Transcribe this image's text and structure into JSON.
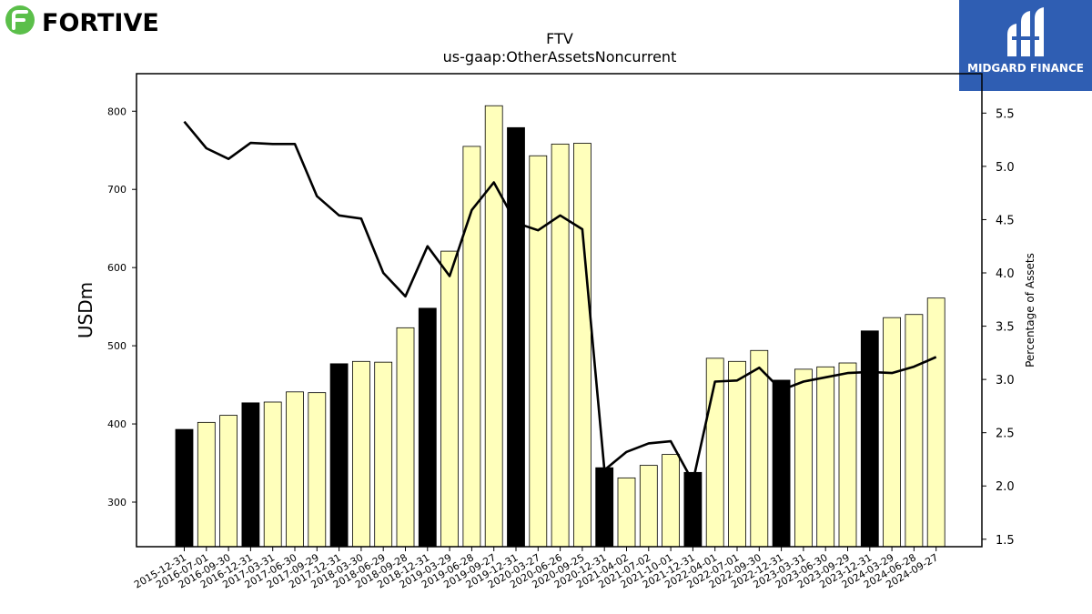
{
  "brand": {
    "name": "FORTIVE",
    "logo_color": "#5bbf4a"
  },
  "badge": {
    "name": "MIDGARD FINANCE",
    "color": "#2f5eb3"
  },
  "chart_data": {
    "type": "bar",
    "title": "FTV",
    "subtitle": "us-gaap:OtherAssetsNoncurrent",
    "ylabel": "USDm",
    "y2label": "Percentage of Assets",
    "ylim": [
      243,
      848
    ],
    "y2lim": [
      1.43,
      5.87
    ],
    "yticks": [
      300,
      400,
      500,
      600,
      700,
      800
    ],
    "y2ticks": [
      "1.5",
      "2.0",
      "2.5",
      "3.0",
      "3.5",
      "4.0",
      "4.5",
      "5.0",
      "5.5"
    ],
    "grid": false,
    "categories": [
      "2015-12-31",
      "2016-07-01",
      "2016-09-30",
      "2016-12-31",
      "2017-03-31",
      "2017-06-30",
      "2017-09-29",
      "2017-12-31",
      "2018-03-30",
      "2018-06-29",
      "2018-09-28",
      "2018-12-31",
      "2019-03-29",
      "2019-06-28",
      "2019-09-27",
      "2019-12-31",
      "2020-03-27",
      "2020-06-26",
      "2020-09-25",
      "2020-12-31",
      "2021-04-02",
      "2021-07-02",
      "2021-10-01",
      "2021-12-31",
      "2022-04-01",
      "2022-07-01",
      "2022-09-30",
      "2022-12-31",
      "2023-03-31",
      "2023-06-30",
      "2023-09-29",
      "2023-12-31",
      "2024-03-29",
      "2024-06-28",
      "2024-09-27"
    ],
    "series": [
      {
        "type": "bar",
        "values": [
          393,
          402,
          411,
          427,
          428,
          441,
          440,
          477,
          480,
          479,
          523,
          548,
          621,
          755,
          807,
          779,
          743,
          758,
          759,
          344,
          331,
          347,
          361,
          338,
          484,
          480,
          494,
          456,
          470,
          473,
          478,
          519,
          536,
          540,
          561
        ],
        "year_end": [
          true,
          false,
          false,
          true,
          false,
          false,
          false,
          true,
          false,
          false,
          false,
          true,
          false,
          false,
          false,
          true,
          false,
          false,
          false,
          true,
          false,
          false,
          false,
          true,
          false,
          false,
          false,
          true,
          false,
          false,
          false,
          true,
          false,
          false,
          false
        ],
        "colors": {
          "year_end": "#000000",
          "quarter": "#ffffbb"
        }
      },
      {
        "type": "line",
        "axis": "right",
        "values": [
          5.42,
          5.17,
          5.07,
          5.22,
          5.21,
          5.21,
          4.72,
          4.54,
          4.51,
          4.0,
          3.78,
          4.25,
          3.97,
          4.59,
          4.85,
          4.47,
          4.4,
          4.54,
          4.41,
          2.15,
          2.32,
          2.4,
          2.42,
          2.04,
          2.98,
          2.99,
          3.11,
          2.9,
          2.98,
          3.02,
          3.06,
          3.07,
          3.06,
          3.12,
          3.21
        ],
        "color": "#000000"
      }
    ]
  }
}
